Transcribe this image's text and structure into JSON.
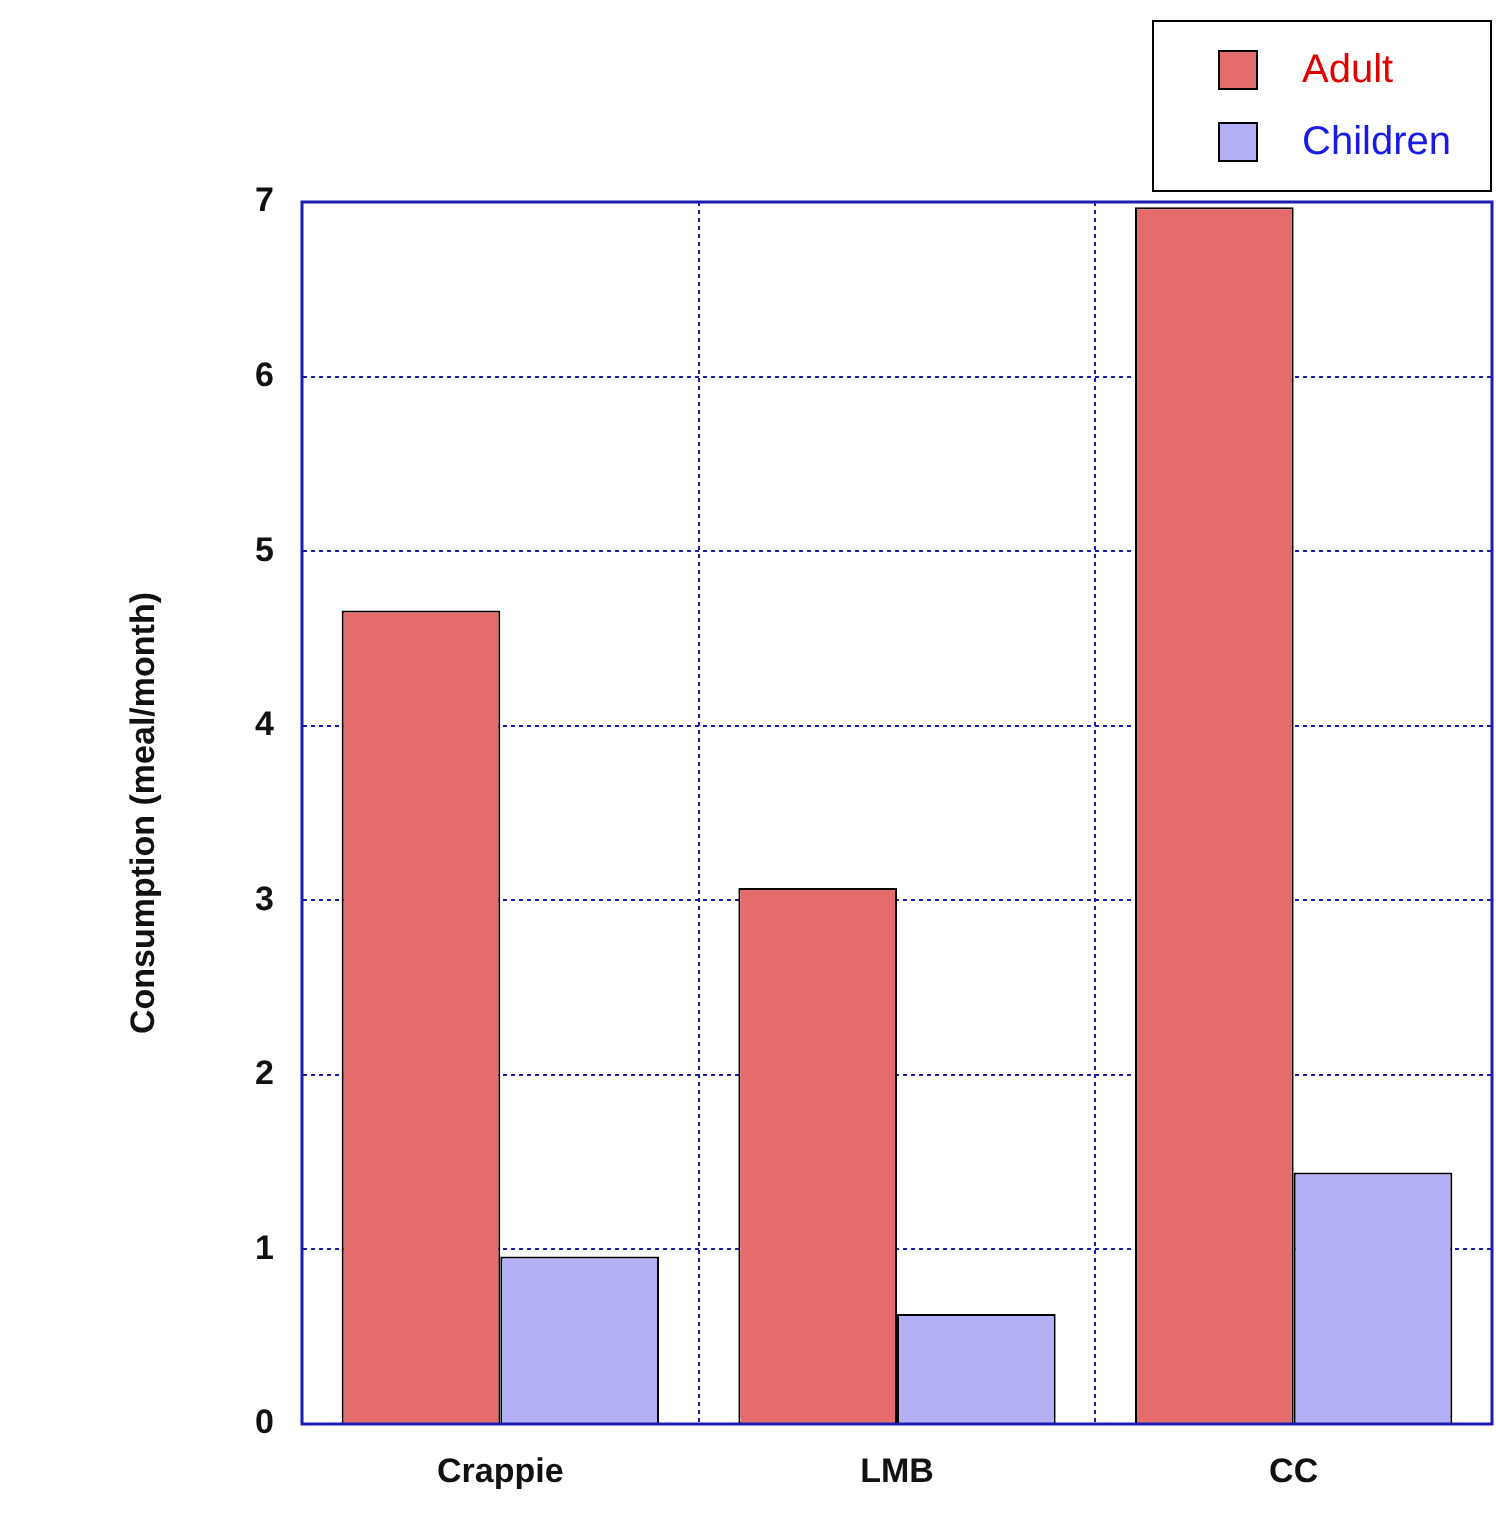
{
  "chart_data": {
    "type": "bar",
    "ylabel": "Consumption (meal/month)",
    "categories": [
      "Crappie",
      "LMB",
      "CC"
    ],
    "series": [
      {
        "name": "Adult",
        "color": "#e46c6c",
        "values": [
          4.66,
          3.07,
          6.97
        ]
      },
      {
        "name": "Children",
        "color": "#b3b0f5",
        "values": [
          0.96,
          0.63,
          1.44
        ]
      }
    ],
    "ylim": [
      0,
      7
    ],
    "yticks": [
      0,
      1,
      2,
      3,
      4,
      5,
      6,
      7
    ],
    "grid": true,
    "legend": "top right"
  }
}
